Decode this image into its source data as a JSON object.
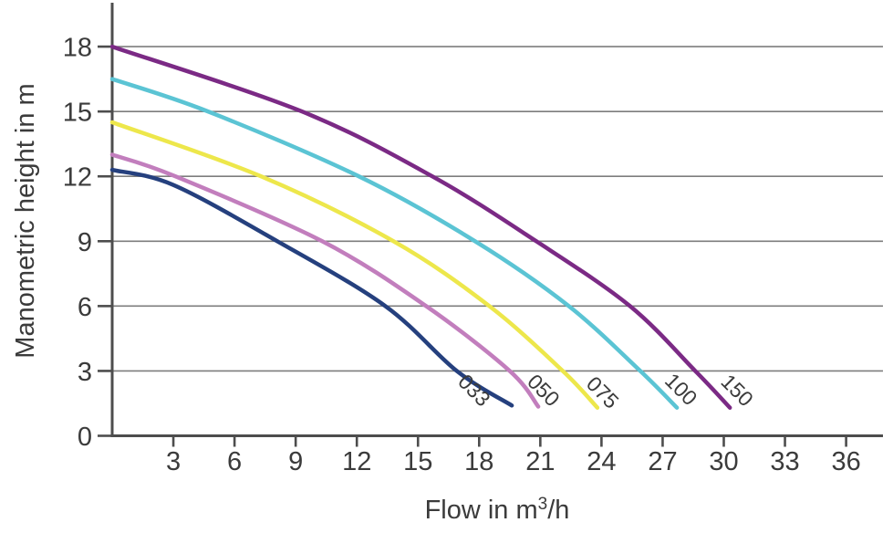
{
  "chart_data": {
    "type": "line",
    "title": "",
    "xlabel": "Flow in m³/h",
    "xlabel_parts": {
      "pre": "Flow in m",
      "sup": "3",
      "post": "/h"
    },
    "ylabel": "Manometric height in m",
    "x_ticks": [
      3,
      6,
      9,
      12,
      15,
      18,
      21,
      24,
      27,
      30,
      33,
      36
    ],
    "y_ticks": [
      0,
      3,
      6,
      9,
      12,
      15,
      18
    ],
    "y_gridlines": [
      3,
      6,
      9,
      12,
      15,
      18
    ],
    "xlim": [
      0,
      37.8
    ],
    "ylim": [
      0,
      18
    ],
    "grid": "horizontal-only",
    "legend_position": "inline-rotated-labels-at-curve-ends",
    "series": [
      {
        "name": "033",
        "color": "#25407E",
        "points": [
          [
            0,
            12.3
          ],
          [
            3,
            11.6
          ],
          [
            8.1,
            9
          ],
          [
            13.4,
            6
          ],
          [
            16.9,
            3
          ],
          [
            19.6,
            1.4
          ]
        ],
        "label_at": [
          17.7,
          2.05
        ],
        "label_angle": 45
      },
      {
        "name": "050",
        "color": "#C27EBD",
        "points": [
          [
            0,
            13.0
          ],
          [
            3.1,
            12
          ],
          [
            10.3,
            9
          ],
          [
            15.4,
            6
          ],
          [
            19.5,
            3
          ],
          [
            20.9,
            1.35
          ]
        ],
        "label_at": [
          21.1,
          2.05
        ],
        "label_angle": 45
      },
      {
        "name": "075",
        "color": "#EDE74B",
        "points": [
          [
            0,
            14.5
          ],
          [
            7.3,
            12
          ],
          [
            13.8,
            9
          ],
          [
            18.5,
            6
          ],
          [
            22.1,
            3
          ],
          [
            23.8,
            1.3
          ]
        ],
        "label_at": [
          24.0,
          1.95
        ],
        "label_angle": 45
      },
      {
        "name": "100",
        "color": "#5BC4D4",
        "points": [
          [
            0,
            16.5
          ],
          [
            4.7,
            15
          ],
          [
            12.1,
            12
          ],
          [
            17.8,
            9
          ],
          [
            22.4,
            6
          ],
          [
            25.9,
            3
          ],
          [
            27.7,
            1.3
          ]
        ],
        "label_at": [
          27.85,
          2.1
        ],
        "label_angle": 45
      },
      {
        "name": "150",
        "color": "#7B2A85",
        "points": [
          [
            0,
            18
          ],
          [
            9.3,
            15
          ],
          [
            15.7,
            12
          ],
          [
            20.8,
            9
          ],
          [
            25.4,
            6
          ],
          [
            28.6,
            3
          ],
          [
            30.3,
            1.3
          ]
        ],
        "label_at": [
          30.6,
          2.05
        ],
        "label_angle": 45
      }
    ],
    "colors": {
      "axis": "#4D4D4D",
      "grid": "#7D7D7D",
      "text": "#3B3B3B"
    }
  }
}
